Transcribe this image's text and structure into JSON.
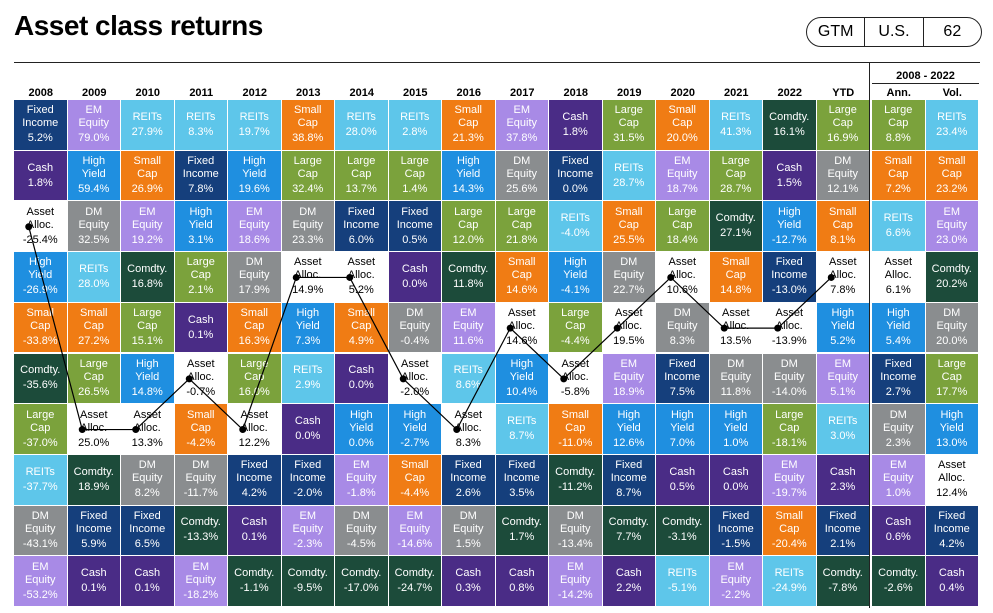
{
  "header": {
    "title": "Asset class returns",
    "tags": [
      "GTM",
      "U.S.",
      "62"
    ]
  },
  "colors": {
    "Fixed Income": "#153f7c",
    "Cash": "#4a2c86",
    "Asset Alloc.": "#ffffff",
    "High Yield": "#1f8fe0",
    "REITs": "#5ec6ea",
    "Small Cap": "#f07c14",
    "Comdty.": "#1c4b3a",
    "Large Cap": "#7ba23c",
    "EM Equity": "#a88ae6",
    "DM Equity": "#8a8d8f"
  },
  "table": {
    "columns": [
      {
        "header": "2008",
        "cells": [
          [
            "Fixed Income",
            "5.2%"
          ],
          [
            "Cash",
            "1.8%"
          ],
          [
            "Asset Alloc.",
            "-25.4%"
          ],
          [
            "High Yield",
            "-26.9%"
          ],
          [
            "Small Cap",
            "-33.8%"
          ],
          [
            "Comdty.",
            "-35.6%"
          ],
          [
            "Large Cap",
            "-37.0%"
          ],
          [
            "REITs",
            "-37.7%"
          ],
          [
            "DM Equity",
            "-43.1%"
          ],
          [
            "EM Equity",
            "-53.2%"
          ]
        ]
      },
      {
        "header": "2009",
        "cells": [
          [
            "EM Equity",
            "79.0%"
          ],
          [
            "High Yield",
            "59.4%"
          ],
          [
            "DM Equity",
            "32.5%"
          ],
          [
            "REITs",
            "28.0%"
          ],
          [
            "Small Cap",
            "27.2%"
          ],
          [
            "Large Cap",
            "26.5%"
          ],
          [
            "Asset Alloc.",
            "25.0%"
          ],
          [
            "Comdty.",
            "18.9%"
          ],
          [
            "Fixed Income",
            "5.9%"
          ],
          [
            "Cash",
            "0.1%"
          ]
        ]
      },
      {
        "header": "2010",
        "cells": [
          [
            "REITs",
            "27.9%"
          ],
          [
            "Small Cap",
            "26.9%"
          ],
          [
            "EM Equity",
            "19.2%"
          ],
          [
            "Comdty.",
            "16.8%"
          ],
          [
            "Large Cap",
            "15.1%"
          ],
          [
            "High Yield",
            "14.8%"
          ],
          [
            "Asset Alloc.",
            "13.3%"
          ],
          [
            "DM Equity",
            "8.2%"
          ],
          [
            "Fixed Income",
            "6.5%"
          ],
          [
            "Cash",
            "0.1%"
          ]
        ]
      },
      {
        "header": "2011",
        "cells": [
          [
            "REITs",
            "8.3%"
          ],
          [
            "Fixed Income",
            "7.8%"
          ],
          [
            "High Yield",
            "3.1%"
          ],
          [
            "Large Cap",
            "2.1%"
          ],
          [
            "Cash",
            "0.1%"
          ],
          [
            "Asset Alloc.",
            "-0.7%"
          ],
          [
            "Small Cap",
            "-4.2%"
          ],
          [
            "DM Equity",
            "-11.7%"
          ],
          [
            "Comdty.",
            "-13.3%"
          ],
          [
            "EM Equity",
            "-18.2%"
          ]
        ]
      },
      {
        "header": "2012",
        "cells": [
          [
            "REITs",
            "19.7%"
          ],
          [
            "High Yield",
            "19.6%"
          ],
          [
            "EM Equity",
            "18.6%"
          ],
          [
            "DM Equity",
            "17.9%"
          ],
          [
            "Small Cap",
            "16.3%"
          ],
          [
            "Large Cap",
            "16.0%"
          ],
          [
            "Asset Alloc.",
            "12.2%"
          ],
          [
            "Fixed Income",
            "4.2%"
          ],
          [
            "Cash",
            "0.1%"
          ],
          [
            "Comdty.",
            "-1.1%"
          ]
        ]
      },
      {
        "header": "2013",
        "cells": [
          [
            "Small Cap",
            "38.8%"
          ],
          [
            "Large Cap",
            "32.4%"
          ],
          [
            "DM Equity",
            "23.3%"
          ],
          [
            "Asset Alloc.",
            "14.9%"
          ],
          [
            "High Yield",
            "7.3%"
          ],
          [
            "REITs",
            "2.9%"
          ],
          [
            "Cash",
            "0.0%"
          ],
          [
            "Fixed Income",
            "-2.0%"
          ],
          [
            "EM Equity",
            "-2.3%"
          ],
          [
            "Comdty.",
            "-9.5%"
          ]
        ]
      },
      {
        "header": "2014",
        "cells": [
          [
            "REITs",
            "28.0%"
          ],
          [
            "Large Cap",
            "13.7%"
          ],
          [
            "Fixed Income",
            "6.0%"
          ],
          [
            "Asset Alloc.",
            "5.2%"
          ],
          [
            "Small Cap",
            "4.9%"
          ],
          [
            "Cash",
            "0.0%"
          ],
          [
            "High Yield",
            "0.0%"
          ],
          [
            "EM Equity",
            "-1.8%"
          ],
          [
            "DM Equity",
            "-4.5%"
          ],
          [
            "Comdty.",
            "-17.0%"
          ]
        ]
      },
      {
        "header": "2015",
        "cells": [
          [
            "REITs",
            "2.8%"
          ],
          [
            "Large Cap",
            "1.4%"
          ],
          [
            "Fixed Income",
            "0.5%"
          ],
          [
            "Cash",
            "0.0%"
          ],
          [
            "DM Equity",
            "-0.4%"
          ],
          [
            "Asset Alloc.",
            "-2.0%"
          ],
          [
            "High Yield",
            "-2.7%"
          ],
          [
            "Small Cap",
            "-4.4%"
          ],
          [
            "EM Equity",
            "-14.6%"
          ],
          [
            "Comdty.",
            "-24.7%"
          ]
        ]
      },
      {
        "header": "2016",
        "cells": [
          [
            "Small Cap",
            "21.3%"
          ],
          [
            "High Yield",
            "14.3%"
          ],
          [
            "Large Cap",
            "12.0%"
          ],
          [
            "Comdty.",
            "11.8%"
          ],
          [
            "EM Equity",
            "11.6%"
          ],
          [
            "REITs",
            "8.6%"
          ],
          [
            "Asset Alloc.",
            "8.3%"
          ],
          [
            "Fixed Income",
            "2.6%"
          ],
          [
            "DM Equity",
            "1.5%"
          ],
          [
            "Cash",
            "0.3%"
          ]
        ]
      },
      {
        "header": "2017",
        "cells": [
          [
            "EM Equity",
            "37.8%"
          ],
          [
            "DM Equity",
            "25.6%"
          ],
          [
            "Large Cap",
            "21.8%"
          ],
          [
            "Small Cap",
            "14.6%"
          ],
          [
            "Asset Alloc.",
            "14.6%"
          ],
          [
            "High Yield",
            "10.4%"
          ],
          [
            "REITs",
            "8.7%"
          ],
          [
            "Fixed Income",
            "3.5%"
          ],
          [
            "Comdty.",
            "1.7%"
          ],
          [
            "Cash",
            "0.8%"
          ]
        ]
      },
      {
        "header": "2018",
        "cells": [
          [
            "Cash",
            "1.8%"
          ],
          [
            "Fixed Income",
            "0.0%"
          ],
          [
            "REITs",
            "-4.0%"
          ],
          [
            "High Yield",
            "-4.1%"
          ],
          [
            "Large Cap",
            "-4.4%"
          ],
          [
            "Asset Alloc.",
            "-5.8%"
          ],
          [
            "Small Cap",
            "-11.0%"
          ],
          [
            "Comdty.",
            "-11.2%"
          ],
          [
            "DM Equity",
            "-13.4%"
          ],
          [
            "EM Equity",
            "-14.2%"
          ]
        ]
      },
      {
        "header": "2019",
        "cells": [
          [
            "Large Cap",
            "31.5%"
          ],
          [
            "REITs",
            "28.7%"
          ],
          [
            "Small Cap",
            "25.5%"
          ],
          [
            "DM Equity",
            "22.7%"
          ],
          [
            "Asset Alloc.",
            "19.5%"
          ],
          [
            "EM Equity",
            "18.9%"
          ],
          [
            "High Yield",
            "12.6%"
          ],
          [
            "Fixed Income",
            "8.7%"
          ],
          [
            "Comdty.",
            "7.7%"
          ],
          [
            "Cash",
            "2.2%"
          ]
        ]
      },
      {
        "header": "2020",
        "cells": [
          [
            "Small Cap",
            "20.0%"
          ],
          [
            "EM Equity",
            "18.7%"
          ],
          [
            "Large Cap",
            "18.4%"
          ],
          [
            "Asset Alloc.",
            "10.6%"
          ],
          [
            "DM Equity",
            "8.3%"
          ],
          [
            "Fixed Income",
            "7.5%"
          ],
          [
            "High Yield",
            "7.0%"
          ],
          [
            "Cash",
            "0.5%"
          ],
          [
            "Comdty.",
            "-3.1%"
          ],
          [
            "REITs",
            "-5.1%"
          ]
        ]
      },
      {
        "header": "2021",
        "cells": [
          [
            "REITs",
            "41.3%"
          ],
          [
            "Large Cap",
            "28.7%"
          ],
          [
            "Comdty.",
            "27.1%"
          ],
          [
            "Small Cap",
            "14.8%"
          ],
          [
            "Asset Alloc.",
            "13.5%"
          ],
          [
            "DM Equity",
            "11.8%"
          ],
          [
            "High Yield",
            "1.0%"
          ],
          [
            "Cash",
            "0.0%"
          ],
          [
            "Fixed Income",
            "-1.5%"
          ],
          [
            "EM Equity",
            "-2.2%"
          ]
        ]
      },
      {
        "header": "2022",
        "cells": [
          [
            "Comdty.",
            "16.1%"
          ],
          [
            "Cash",
            "1.5%"
          ],
          [
            "High Yield",
            "-12.7%"
          ],
          [
            "Fixed Income",
            "-13.0%"
          ],
          [
            "Asset Alloc.",
            "-13.9%"
          ],
          [
            "DM Equity",
            "-14.0%"
          ],
          [
            "Large Cap",
            "-18.1%"
          ],
          [
            "EM Equity",
            "-19.7%"
          ],
          [
            "Small Cap",
            "-20.4%"
          ],
          [
            "REITs",
            "-24.9%"
          ]
        ]
      },
      {
        "header": "YTD",
        "cells": [
          [
            "Large Cap",
            "16.9%"
          ],
          [
            "DM Equity",
            "12.1%"
          ],
          [
            "Small Cap",
            "8.1%"
          ],
          [
            "Asset Alloc.",
            "7.8%"
          ],
          [
            "High Yield",
            "5.2%"
          ],
          [
            "EM Equity",
            "5.1%"
          ],
          [
            "REITs",
            "3.0%"
          ],
          [
            "Cash",
            "2.3%"
          ],
          [
            "Fixed Income",
            "2.1%"
          ],
          [
            "Comdty.",
            "-7.8%"
          ]
        ]
      }
    ]
  },
  "summary": {
    "label": "2008 - 2022",
    "columns": [
      {
        "header": "Ann.",
        "cells": [
          [
            "Large Cap",
            "8.8%"
          ],
          [
            "Small Cap",
            "7.2%"
          ],
          [
            "REITs",
            "6.6%"
          ],
          [
            "Asset Alloc.",
            "6.1%"
          ],
          [
            "High Yield",
            "5.4%"
          ],
          [
            "Fixed Income",
            "2.7%"
          ],
          [
            "DM Equity",
            "2.3%"
          ],
          [
            "EM Equity",
            "1.0%"
          ],
          [
            "Cash",
            "0.6%"
          ],
          [
            "Comdty.",
            "-2.6%"
          ]
        ]
      },
      {
        "header": "Vol.",
        "cells": [
          [
            "REITs",
            "23.4%"
          ],
          [
            "Small Cap",
            "23.2%"
          ],
          [
            "EM Equity",
            "23.0%"
          ],
          [
            "Comdty.",
            "20.2%"
          ],
          [
            "DM Equity",
            "20.0%"
          ],
          [
            "Large Cap",
            "17.7%"
          ],
          [
            "High Yield",
            "13.0%"
          ],
          [
            "Asset Alloc.",
            "12.4%"
          ],
          [
            "Fixed Income",
            "4.2%"
          ],
          [
            "Cash",
            "0.4%"
          ]
        ]
      }
    ]
  }
}
